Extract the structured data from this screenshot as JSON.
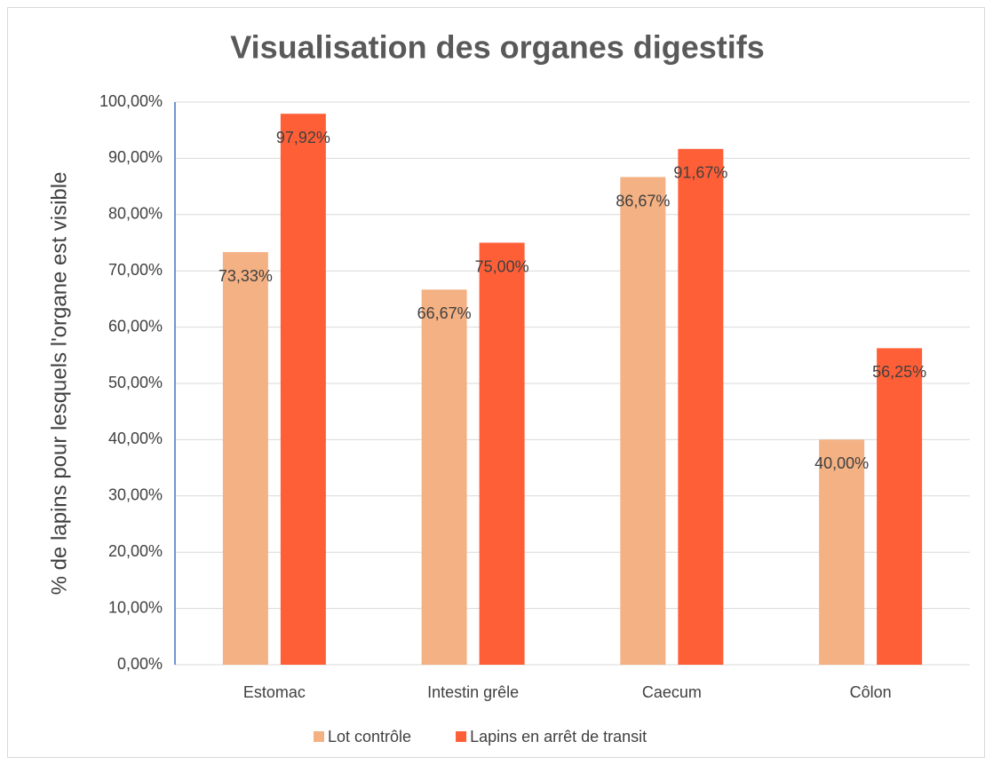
{
  "chart_data": {
    "type": "bar",
    "title": "Visualisation des organes digestifs",
    "y_label": "% de lapins pour lesquels l'organe est visible",
    "categories": [
      "Estomac",
      "Intestin grêle",
      "Caecum",
      "Côlon"
    ],
    "series": [
      {
        "name": "Lot contrôle",
        "color": "#f4b183",
        "values": [
          73.33,
          66.67,
          86.67,
          40.0
        ],
        "value_labels": [
          "73,33%",
          "66,67%",
          "86,67%",
          "40,00%"
        ]
      },
      {
        "name": "Lapins en arrêt de transit",
        "color": "#ff5f37",
        "values": [
          97.92,
          75.0,
          91.67,
          56.25
        ],
        "value_labels": [
          "97,92%",
          "75,00%",
          "91,67%",
          "56,25%"
        ]
      }
    ],
    "ylim": [
      0,
      100
    ],
    "yticks": [
      {
        "value": 0,
        "label": "0,00%"
      },
      {
        "value": 10,
        "label": "10,00%"
      },
      {
        "value": 20,
        "label": "20,00%"
      },
      {
        "value": 30,
        "label": "30,00%"
      },
      {
        "value": 40,
        "label": "40,00%"
      },
      {
        "value": 50,
        "label": "50,00%"
      },
      {
        "value": 60,
        "label": "60,00%"
      },
      {
        "value": 70,
        "label": "70,00%"
      },
      {
        "value": 80,
        "label": "80,00%"
      },
      {
        "value": 90,
        "label": "90,00%"
      },
      {
        "value": 100,
        "label": "100,00%"
      }
    ],
    "grid": true,
    "legend": "bottom"
  }
}
